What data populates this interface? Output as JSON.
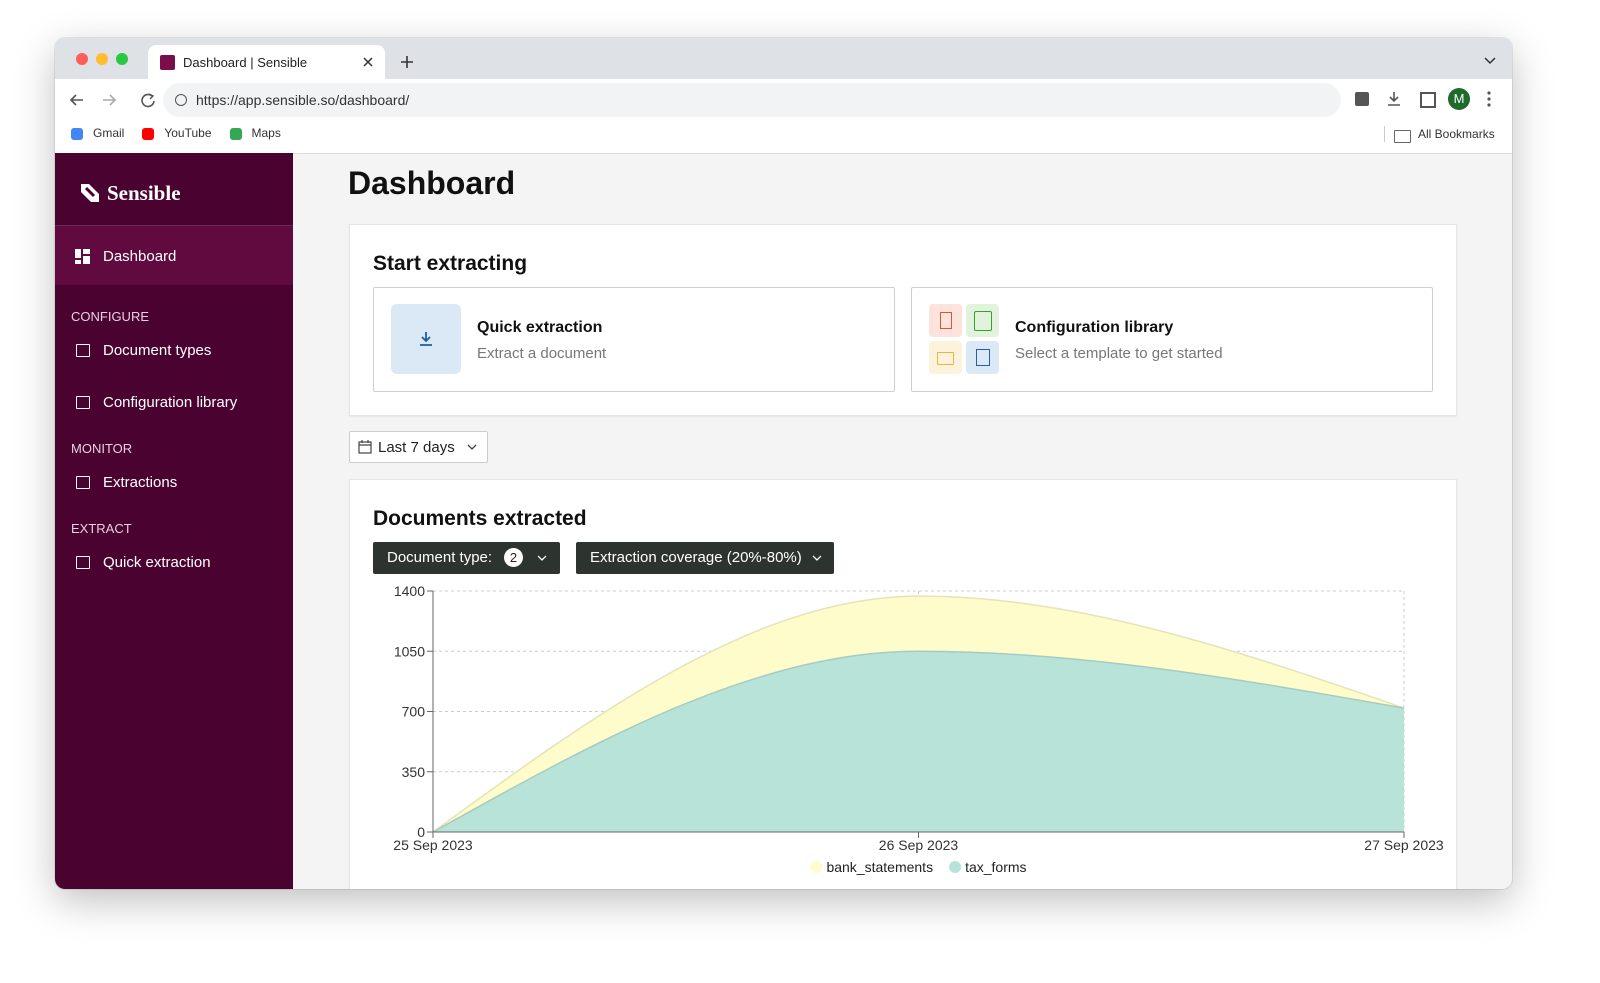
{
  "browser": {
    "tab_title": "Dashboard | Sensible",
    "url": "https://app.sensible.so/dashboard/",
    "bookmarks": [
      "Gmail",
      "YouTube",
      "Maps"
    ],
    "all_bookmarks": "All Bookmarks",
    "avatar": "M"
  },
  "sidebar": {
    "brand": "Sensible",
    "active_item": "Dashboard",
    "sections": [
      {
        "heading": "CONFIGURE",
        "items": [
          "Document types",
          "Configuration library"
        ]
      },
      {
        "heading": "MONITOR",
        "items": [
          "Extractions"
        ]
      },
      {
        "heading": "EXTRACT",
        "items": [
          "Quick extraction"
        ]
      }
    ]
  },
  "page": {
    "title": "Dashboard",
    "start_extracting": {
      "title": "Start extracting",
      "cards": [
        {
          "title": "Quick extraction",
          "subtitle": "Extract a document"
        },
        {
          "title": "Configuration library",
          "subtitle": "Select a template to get started"
        }
      ]
    },
    "date_filter": "Last 7 days",
    "documents": {
      "title": "Documents extracted",
      "filters": [
        {
          "label": "Document type:",
          "badge": 2
        },
        {
          "label": "Extraction coverage (20%-80%)"
        }
      ]
    }
  },
  "chart_data": {
    "type": "stacked-area",
    "categories": [
      "25 Sep 2023",
      "26 Sep 2023",
      "27 Sep 2023"
    ],
    "series": [
      {
        "name": "bank_statements",
        "color": "#fefccb",
        "values": [
          0,
          320,
          0
        ]
      },
      {
        "name": "tax_forms",
        "color": "#b8e3d8",
        "values": [
          0,
          1050,
          720
        ]
      }
    ],
    "ylim": [
      0,
      1400
    ],
    "yticks": [
      0,
      350,
      700,
      1050,
      1400
    ],
    "grid": true,
    "legend": "bottom"
  }
}
